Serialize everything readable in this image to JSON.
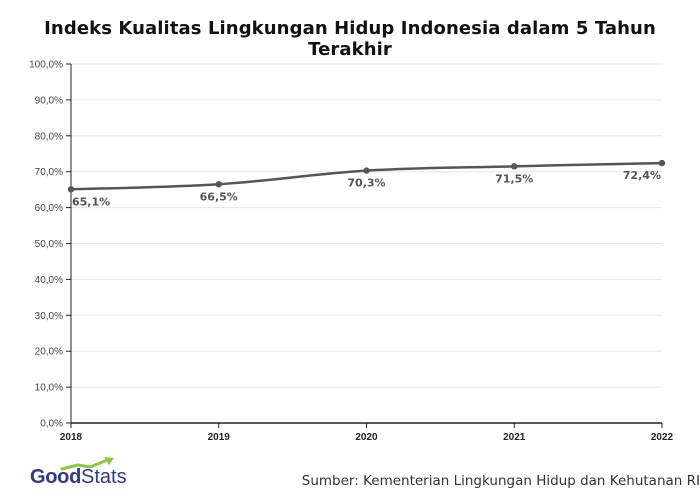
{
  "chart_data": {
    "type": "line",
    "title": "Indeks Kualitas Lingkungan Hidup Indonesia dalam 5 Tahun Terakhir",
    "xlabel": "",
    "ylabel": "",
    "categories": [
      "2018",
      "2019",
      "2020",
      "2021",
      "2022"
    ],
    "series": [
      {
        "values": [
          65.1,
          66.5,
          70.3,
          71.5,
          72.4
        ],
        "data_labels": [
          "65,1%",
          "66,5%",
          "70,3%",
          "71,5%",
          "72,4%"
        ]
      }
    ],
    "ylim": [
      0,
      100
    ],
    "y_ticks": [
      0,
      10,
      20,
      30,
      40,
      50,
      60,
      70,
      80,
      90,
      100
    ],
    "y_tick_labels": [
      "0,0%",
      "10,0%",
      "20,0%",
      "30,0%",
      "40,0%",
      "50,0%",
      "60,0%",
      "70,0%",
      "80,0%",
      "90,0%",
      "100,0%"
    ],
    "grid": true,
    "legend": "none",
    "line_color": "#555555",
    "grid_color": "#e6e6e6",
    "axis_color": "#222222"
  },
  "footer": {
    "logo_good": "Good",
    "logo_stats": "Stats",
    "logo_icon": "goodstats-arrow-icon",
    "source": "Sumber: Kementerian Lingkungan Hidup dan Kehutanan RI"
  }
}
